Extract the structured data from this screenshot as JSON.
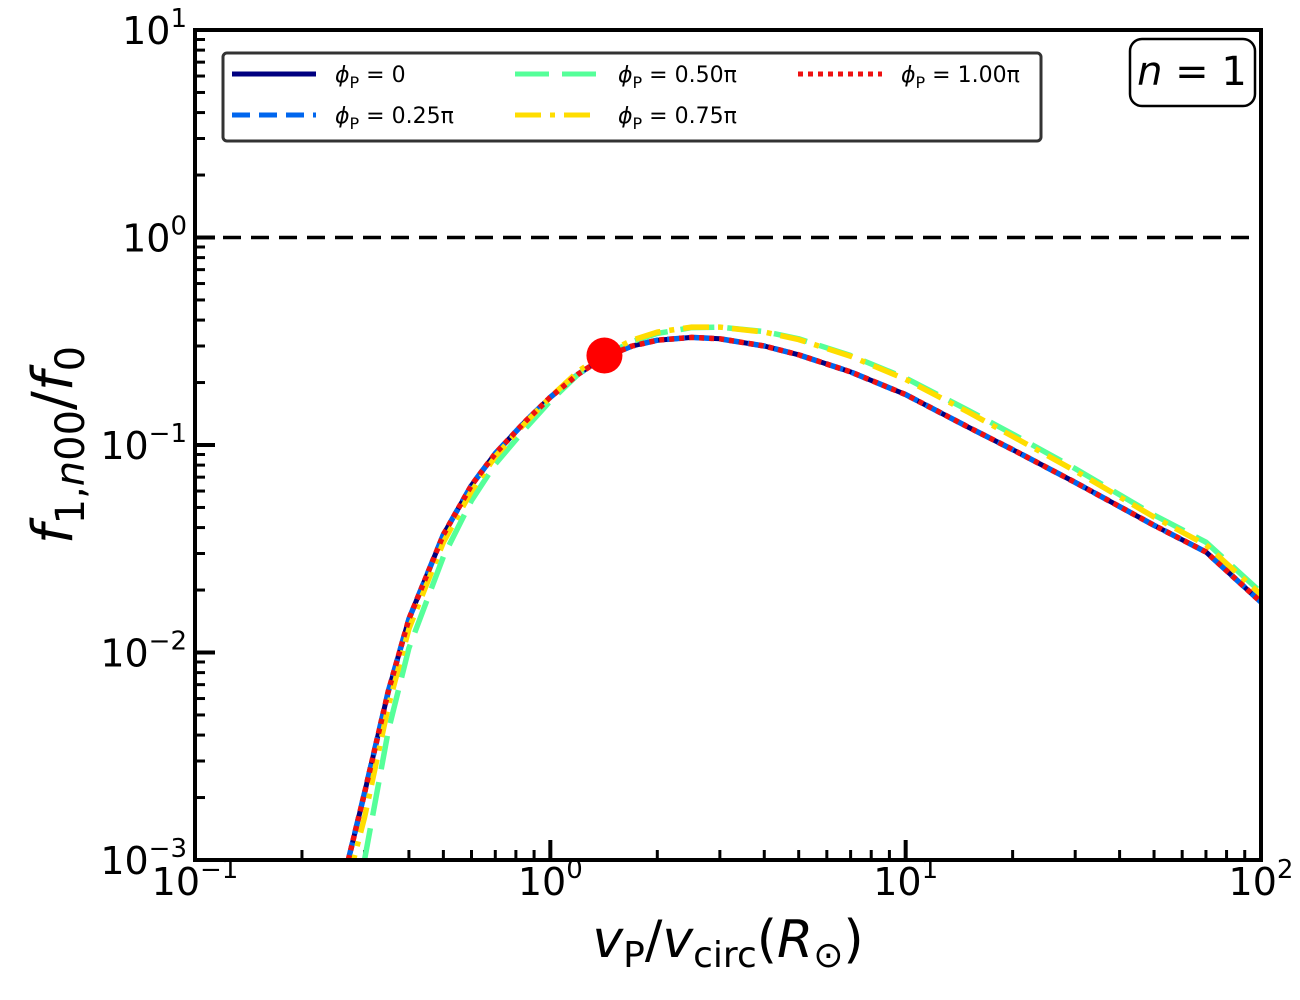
{
  "chart_data": {
    "type": "line",
    "xscale": "log",
    "yscale": "log",
    "xlim": [
      0.1,
      100
    ],
    "ylim": [
      0.001,
      10
    ],
    "xlabel": {
      "v1": "v",
      "sub1": "P",
      "slash": "/",
      "v2": "v",
      "sub2": "circ",
      "paren_open": "(",
      "R": "R",
      "sub3": "⊙",
      "paren_close": ")"
    },
    "ylabel": {
      "f1": "f",
      "sub1": "1,",
      "sub1_n": "n",
      "sub1_rest": "00",
      "slash": "/",
      "f2": "f",
      "sub2": "0"
    },
    "x_ticks": [
      {
        "base": "10",
        "exp": "−1"
      },
      {
        "base": "10",
        "exp": "0"
      },
      {
        "base": "10",
        "exp": "1"
      },
      {
        "base": "10",
        "exp": "2"
      }
    ],
    "y_ticks": [
      {
        "base": "10",
        "exp": "−3"
      },
      {
        "base": "10",
        "exp": "−2"
      },
      {
        "base": "10",
        "exp": "−1"
      },
      {
        "base": "10",
        "exp": "0"
      },
      {
        "base": "10",
        "exp": "1"
      }
    ],
    "reference_line": {
      "y": 1.0,
      "style": "dashed",
      "color": "#000000"
    },
    "marker": {
      "x": 1.42,
      "y": 0.27,
      "color": "#ff0000"
    },
    "annotation": {
      "n": "n",
      "eq": " = 1"
    },
    "grid": false,
    "legend_position": "top-left",
    "x_samples": [
      0.27,
      0.3,
      0.35,
      0.4,
      0.5,
      0.6,
      0.7,
      0.85,
      1.0,
      1.2,
      1.42,
      1.7,
      2.0,
      2.5,
      3.0,
      4.0,
      5.0,
      7.0,
      10,
      15,
      20,
      30,
      50,
      70,
      100
    ],
    "series": [
      {
        "name": {
          "phi": "ϕ",
          "sub": "P",
          "rest": " = 0"
        },
        "color": "#000080",
        "style": "solid",
        "values": [
          0.001,
          0.0021,
          0.0065,
          0.0145,
          0.037,
          0.064,
          0.091,
          0.13,
          0.17,
          0.22,
          0.265,
          0.3,
          0.32,
          0.33,
          0.325,
          0.3,
          0.272,
          0.225,
          0.175,
          0.122,
          0.095,
          0.066,
          0.041,
          0.0305,
          0.0175
        ]
      },
      {
        "name": {
          "phi": "ϕ",
          "sub": "P",
          "rest": " = 0.25π"
        },
        "color": "#0066ee",
        "style": "dashed",
        "values": [
          0.001,
          0.0021,
          0.0065,
          0.0145,
          0.037,
          0.064,
          0.091,
          0.13,
          0.17,
          0.22,
          0.265,
          0.3,
          0.32,
          0.33,
          0.325,
          0.3,
          0.272,
          0.225,
          0.175,
          0.122,
          0.095,
          0.066,
          0.041,
          0.0305,
          0.0175
        ]
      },
      {
        "name": {
          "phi": "ϕ",
          "sub": "P",
          "rest": " = 0.50π"
        },
        "color": "#55ff99",
        "style": "longdash",
        "values": [
          0.0006,
          0.001,
          0.0042,
          0.0105,
          0.029,
          0.054,
          0.081,
          0.12,
          0.163,
          0.22,
          0.27,
          0.315,
          0.345,
          0.368,
          0.37,
          0.352,
          0.325,
          0.27,
          0.21,
          0.147,
          0.113,
          0.077,
          0.046,
          0.034,
          0.0195
        ]
      },
      {
        "name": {
          "phi": "ϕ",
          "sub": "P",
          "rest": " = 0.75π"
        },
        "color": "#ffdd00",
        "style": "dashdot",
        "values": [
          0.0008,
          0.0016,
          0.0055,
          0.013,
          0.034,
          0.06,
          0.088,
          0.128,
          0.17,
          0.227,
          0.275,
          0.32,
          0.35,
          0.37,
          0.37,
          0.35,
          0.322,
          0.268,
          0.207,
          0.144,
          0.11,
          0.075,
          0.045,
          0.033,
          0.019
        ]
      },
      {
        "name": {
          "phi": "ϕ",
          "sub": "P",
          "rest": " = 1.00π"
        },
        "color": "#ee1111",
        "style": "dotted",
        "values": [
          0.001,
          0.0021,
          0.0065,
          0.0145,
          0.037,
          0.064,
          0.091,
          0.13,
          0.17,
          0.22,
          0.265,
          0.3,
          0.32,
          0.33,
          0.325,
          0.3,
          0.272,
          0.225,
          0.175,
          0.122,
          0.095,
          0.066,
          0.041,
          0.0305,
          0.0175
        ]
      }
    ]
  }
}
